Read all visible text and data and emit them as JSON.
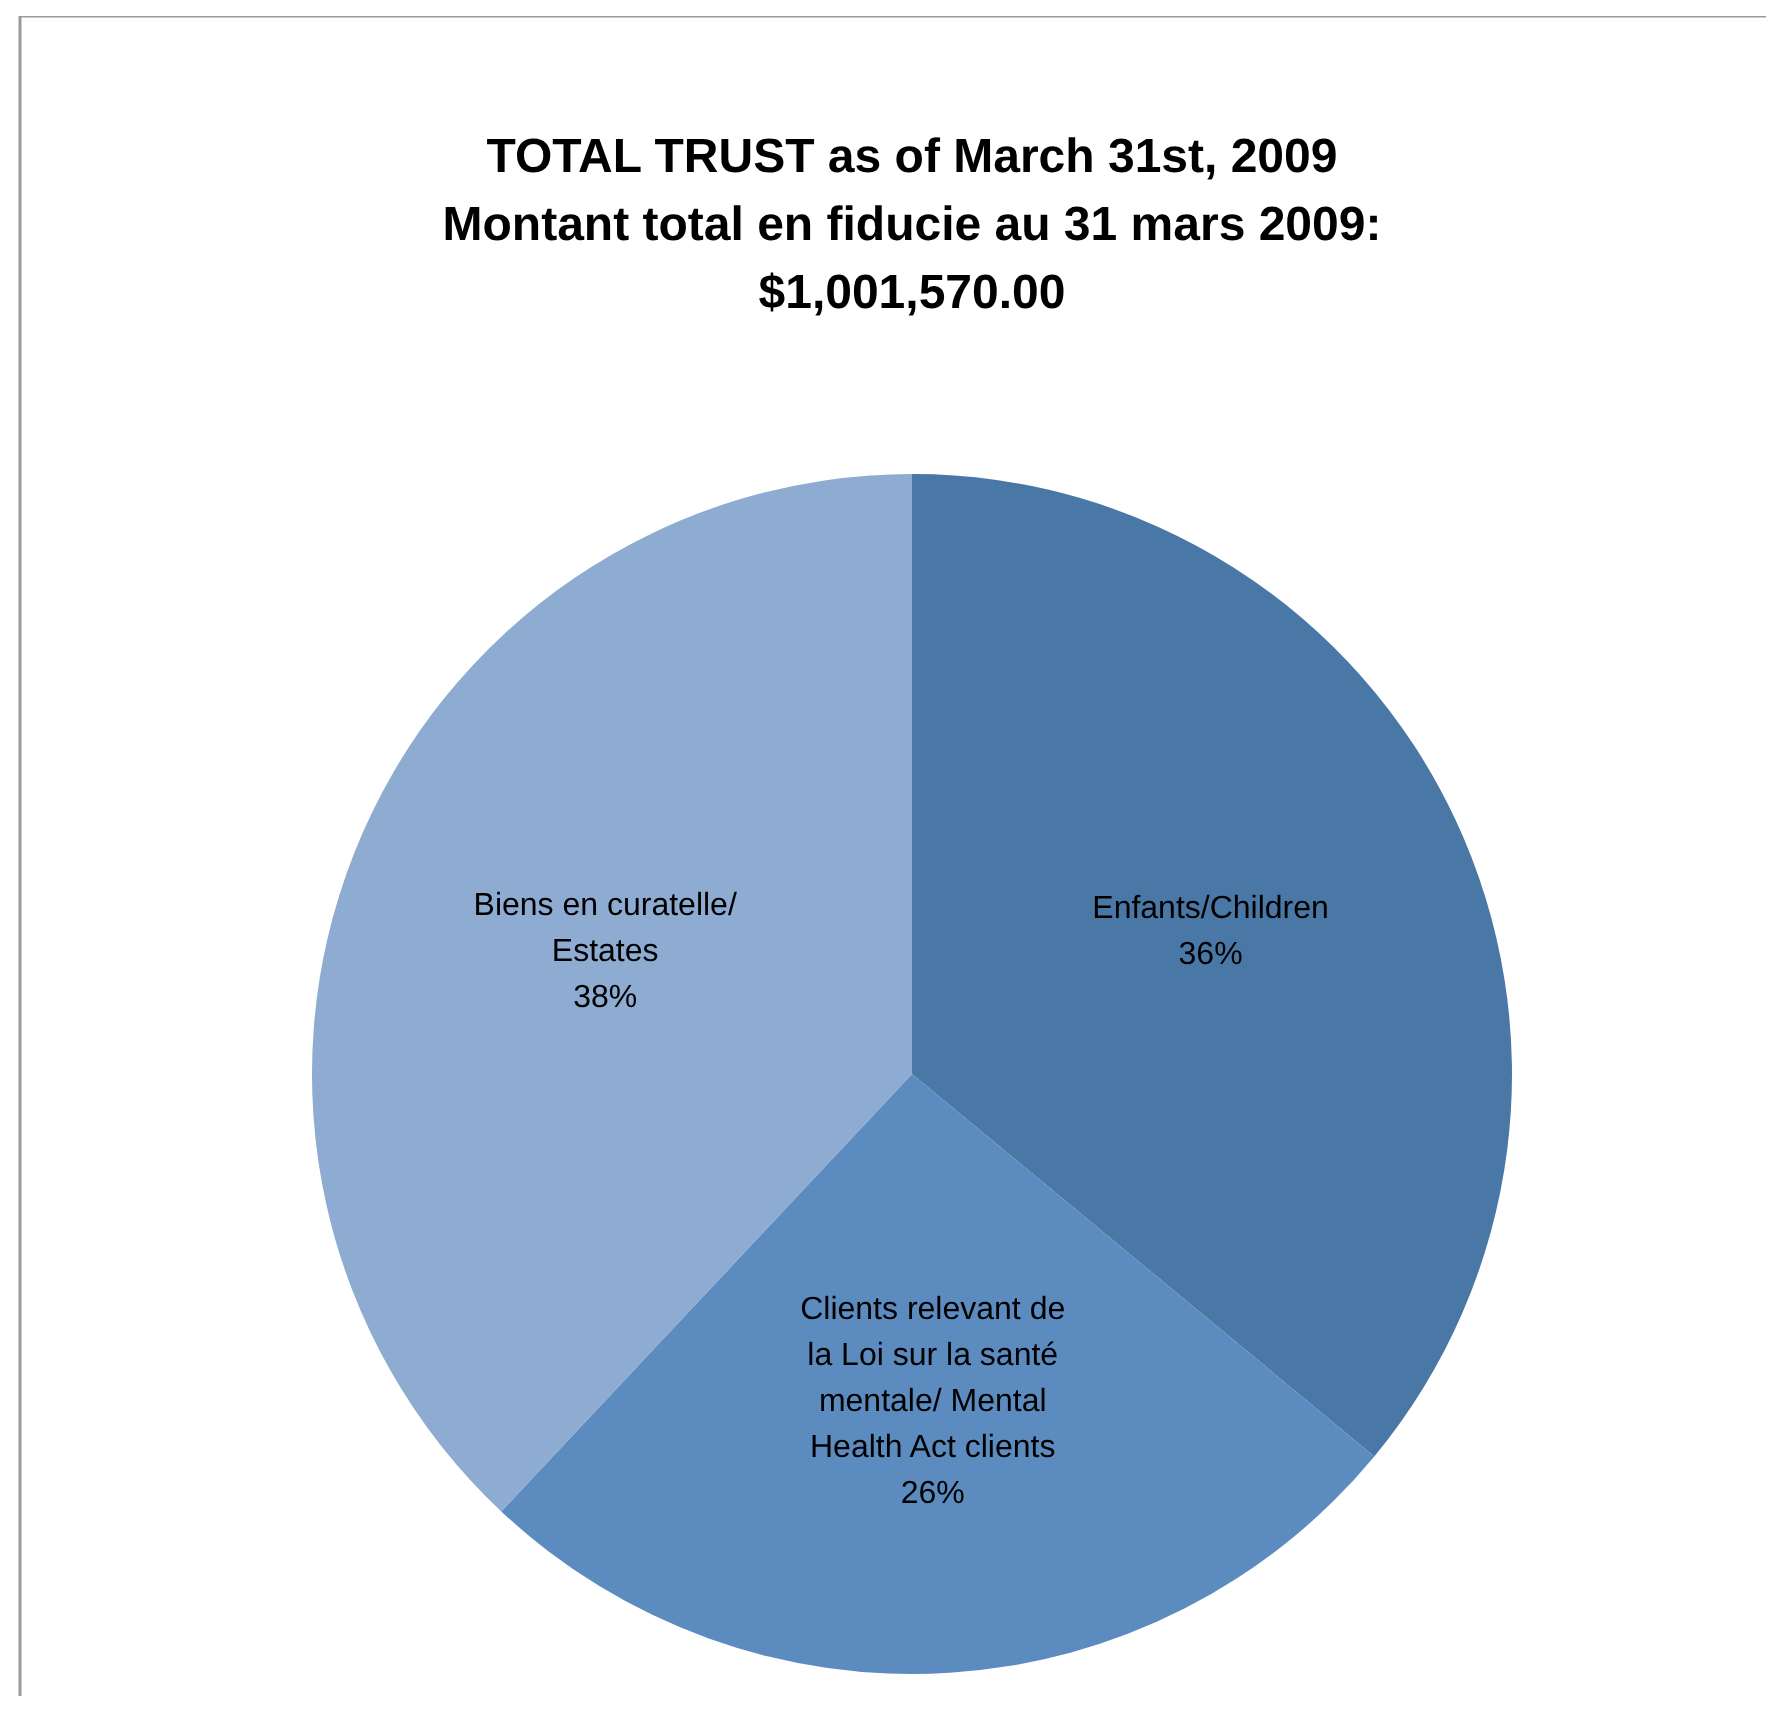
{
  "chart_data": {
    "type": "pie",
    "title": "TOTAL TRUST as of March 31st, 2009\nMontant total en fiducie au 31 mars 2009:\n$1,001,570.00",
    "categories": [
      "Enfants/Children",
      "Clients relevant de la Loi sur la santé mentale/ Mental Health Act clients",
      "Biens en curatelle/ Estates"
    ],
    "values": [
      36,
      26,
      38
    ],
    "colors": [
      "#4a78a6",
      "#5b8bbf",
      "#8eabd1"
    ],
    "value_labels": [
      "36%",
      "26%",
      "38%"
    ],
    "legend": false
  }
}
